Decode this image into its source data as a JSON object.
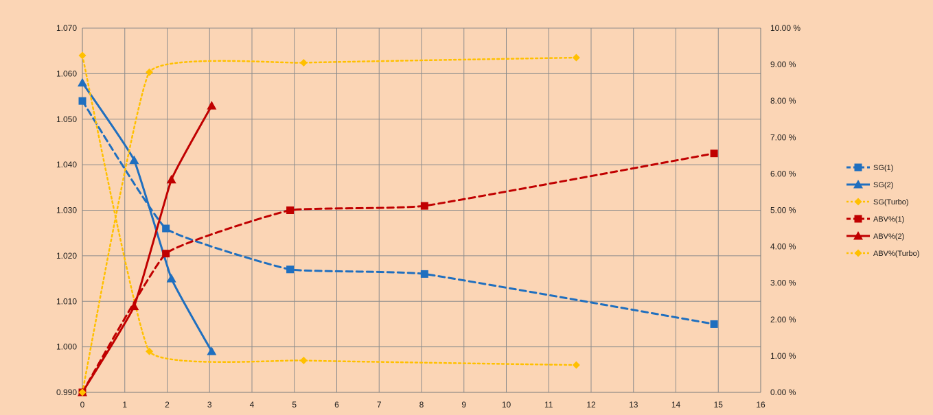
{
  "chart_data": {
    "type": "line",
    "title": "",
    "xlabel": "",
    "ylabel": "",
    "y2label": "",
    "xlim": [
      0,
      16
    ],
    "ylim": [
      0.99,
      1.07
    ],
    "y2lim": [
      0,
      10
    ],
    "grid": true,
    "legend_position": "right",
    "x_ticks": [
      "0",
      "1",
      "2",
      "3",
      "4",
      "5",
      "6",
      "7",
      "8",
      "9",
      "10",
      "11",
      "12",
      "13",
      "14",
      "15",
      "16"
    ],
    "y_ticks": [
      "0.990",
      "1.000",
      "1.010",
      "1.020",
      "1.030",
      "1.040",
      "1.050",
      "1.060",
      "1.070"
    ],
    "y2_ticks": [
      "0.00 %",
      "1.00 %",
      "2.00 %",
      "3.00 %",
      "4.00 %",
      "5.00 %",
      "6.00 %",
      "7.00 %",
      "8.00 %",
      "9.00 %",
      "10.00 %"
    ],
    "series": [
      {
        "name": "SG(1)",
        "axis": "left",
        "color": "#1f6fbf",
        "dash": "dashed",
        "marker": "square",
        "x": [
          0,
          1.97,
          4.9,
          8.07,
          14.9
        ],
        "y": [
          1.054,
          1.026,
          1.017,
          1.016,
          1.005
        ]
      },
      {
        "name": "SG(2)",
        "axis": "left",
        "color": "#1f6fbf",
        "dash": "solid",
        "marker": "triangle",
        "x": [
          0,
          1.22,
          2.1,
          3.05
        ],
        "y": [
          1.058,
          1.041,
          1.015,
          0.999
        ]
      },
      {
        "name": "SG(Turbo)",
        "axis": "left",
        "color": "#ffc000",
        "dash": "dotted",
        "marker": "diamond",
        "x": [
          0,
          1.58,
          5.22,
          11.65
        ],
        "y": [
          1.064,
          0.999,
          0.997,
          0.996
        ]
      },
      {
        "name": "ABV%(1)",
        "axis": "right",
        "color": "#c00000",
        "dash": "dashed",
        "marker": "square",
        "x": [
          0,
          1.97,
          4.9,
          8.07,
          14.9
        ],
        "y": [
          0,
          3.81,
          5.0,
          5.12,
          6.56
        ]
      },
      {
        "name": "ABV%(2)",
        "axis": "right",
        "color": "#c00000",
        "dash": "solid",
        "marker": "triangle",
        "x": [
          0,
          1.22,
          2.1,
          3.05
        ],
        "y": [
          0,
          2.36,
          5.84,
          7.87
        ]
      },
      {
        "name": "ABV%(Turbo)",
        "axis": "right",
        "color": "#ffc000",
        "dash": "dotted",
        "marker": "diamond",
        "x": [
          0,
          1.58,
          5.22,
          11.65
        ],
        "y": [
          0,
          8.79,
          9.05,
          9.19
        ]
      }
    ]
  }
}
